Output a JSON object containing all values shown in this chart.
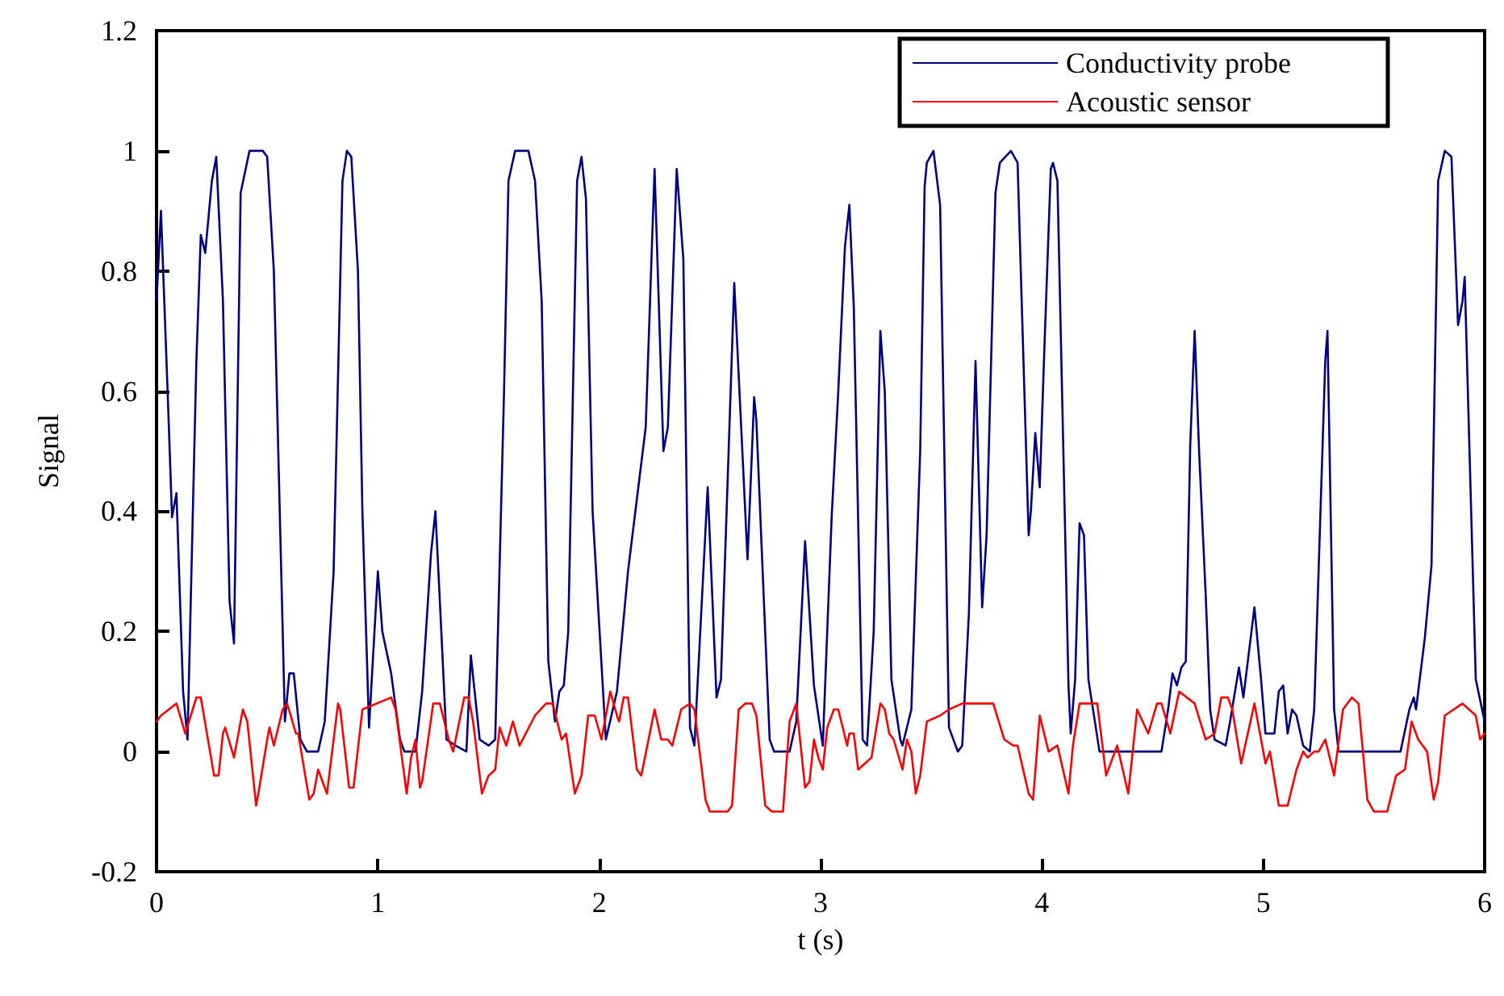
{
  "chart_data": {
    "type": "line",
    "xlabel": "t (s)",
    "ylabel": "Signal",
    "xlim": [
      0,
      6
    ],
    "xticks": [
      0,
      1,
      2,
      3,
      4,
      5,
      6
    ],
    "ylim": [
      -0.2,
      1.2
    ],
    "yticks": [
      -0.2,
      0,
      0.2,
      0.4,
      0.6,
      0.8,
      1,
      1.2
    ],
    "grid": false,
    "legend": "top right",
    "marker": "none",
    "line_style": "solid",
    "series": [
      {
        "name": "Conductivity probe",
        "color": "#000080",
        "x": [
          0,
          0.02,
          0.05,
          0.07,
          0.09,
          0.12,
          0.14,
          0.18,
          0.2,
          0.22,
          0.25,
          0.27,
          0.3,
          0.33,
          0.35,
          0.38,
          0.42,
          0.48,
          0.5,
          0.53,
          0.58,
          0.6,
          0.62,
          0.65,
          0.68,
          0.73,
          0.76,
          0.8,
          0.84,
          0.86,
          0.88,
          0.91,
          0.93,
          0.96,
          1,
          1.02,
          1.06,
          1.1,
          1.12,
          1.17,
          1.2,
          1.24,
          1.26,
          1.28,
          1.31,
          1.35,
          1.4,
          1.42,
          1.46,
          1.5,
          1.53,
          1.57,
          1.59,
          1.62,
          1.68,
          1.71,
          1.74,
          1.77,
          1.8,
          1.82,
          1.84,
          1.86,
          1.9,
          1.92,
          1.94,
          1.97,
          2.03,
          2.08,
          2.13,
          2.21,
          2.25,
          2.29,
          2.31,
          2.35,
          2.38,
          2.41,
          2.43,
          2.49,
          2.53,
          2.55,
          2.61,
          2.67,
          2.7,
          2.71,
          2.77,
          2.79,
          2.86,
          2.89,
          2.93,
          2.97,
          3.01,
          3.05,
          3.08,
          3.11,
          3.13,
          3.15,
          3.19,
          3.21,
          3.24,
          3.27,
          3.29,
          3.32,
          3.36,
          3.37,
          3.41,
          3.45,
          3.47,
          3.48,
          3.51,
          3.54,
          3.58,
          3.62,
          3.64,
          3.67,
          3.7,
          3.73,
          3.75,
          3.79,
          3.81,
          3.86,
          3.89,
          3.94,
          3.95,
          3.97,
          3.99,
          4.01,
          4.04,
          4.05,
          4.07,
          4.12,
          4.13,
          4.15,
          4.17,
          4.19,
          4.21,
          4.26,
          4.54,
          4.57,
          4.59,
          4.61,
          4.63,
          4.65,
          4.67,
          4.69,
          4.71,
          4.74,
          4.76,
          4.78,
          4.83,
          4.85,
          4.89,
          4.91,
          4.96,
          4.99,
          5.01,
          5.05,
          5.07,
          5.09,
          5.11,
          5.13,
          5.15,
          5.18,
          5.21,
          5.23,
          5.28,
          5.29,
          5.32,
          5.34,
          5.62,
          5.66,
          5.68,
          5.69,
          5.73,
          5.76,
          5.79,
          5.82,
          5.85,
          5.88,
          5.9,
          5.91,
          5.96,
          6
        ],
        "values": [
          0.75,
          0.9,
          0.6,
          0.39,
          0.43,
          0.1,
          0.02,
          0.65,
          0.86,
          0.83,
          0.95,
          0.99,
          0.75,
          0.25,
          0.18,
          0.93,
          1,
          1,
          0.99,
          0.8,
          0.05,
          0.13,
          0.13,
          0.02,
          0,
          0,
          0.05,
          0.3,
          0.95,
          1,
          0.99,
          0.8,
          0.4,
          0.04,
          0.3,
          0.2,
          0.13,
          0.02,
          0,
          0,
          0.1,
          0.33,
          0.4,
          0.25,
          0.02,
          0.01,
          0,
          0.16,
          0.02,
          0.01,
          0.02,
          0.6,
          0.95,
          1,
          1,
          0.95,
          0.75,
          0.15,
          0.05,
          0.1,
          0.11,
          0.2,
          0.95,
          0.99,
          0.92,
          0.4,
          0.02,
          0.1,
          0.3,
          0.54,
          0.97,
          0.5,
          0.54,
          0.97,
          0.82,
          0.04,
          0.01,
          0.44,
          0.09,
          0.12,
          0.78,
          0.32,
          0.59,
          0.55,
          0.02,
          0,
          0,
          0.05,
          0.35,
          0.11,
          0.01,
          0.39,
          0.6,
          0.84,
          0.91,
          0.74,
          0.02,
          0.01,
          0.2,
          0.7,
          0.6,
          0.12,
          0.02,
          0.01,
          0.07,
          0.5,
          0.94,
          0.98,
          1,
          0.91,
          0.04,
          0,
          0.01,
          0.23,
          0.65,
          0.24,
          0.36,
          0.93,
          0.98,
          1,
          0.98,
          0.36,
          0.4,
          0.53,
          0.44,
          0.66,
          0.97,
          0.98,
          0.95,
          0.11,
          0.03,
          0.12,
          0.38,
          0.36,
          0.12,
          0,
          0,
          0.07,
          0.13,
          0.11,
          0.14,
          0.15,
          0.51,
          0.7,
          0.5,
          0.26,
          0.07,
          0.02,
          0.01,
          0.05,
          0.14,
          0.09,
          0.24,
          0.12,
          0.03,
          0.03,
          0.1,
          0.11,
          0.03,
          0.07,
          0.06,
          0.01,
          0,
          0.07,
          0.65,
          0.7,
          0.07,
          0,
          0,
          0.07,
          0.09,
          0.07,
          0.19,
          0.31,
          0.95,
          1,
          0.99,
          0.71,
          0.75,
          0.79,
          0.12,
          0.05
        ]
      },
      {
        "name": "Acoustic sensor",
        "color": "#ff0000",
        "x": [
          0,
          0.02,
          0.09,
          0.13,
          0.18,
          0.2,
          0.26,
          0.28,
          0.3,
          0.31,
          0.35,
          0.39,
          0.41,
          0.45,
          0.46,
          0.5,
          0.51,
          0.53,
          0.57,
          0.59,
          0.63,
          0.64,
          0.69,
          0.71,
          0.73,
          0.77,
          0.82,
          0.83,
          0.87,
          0.89,
          0.93,
          1.06,
          1.08,
          1.13,
          1.15,
          1.17,
          1.19,
          1.2,
          1.25,
          1.28,
          1.32,
          1.34,
          1.39,
          1.41,
          1.43,
          1.47,
          1.5,
          1.53,
          1.55,
          1.58,
          1.61,
          1.64,
          1.71,
          1.76,
          1.79,
          1.83,
          1.85,
          1.89,
          1.92,
          1.95,
          1.98,
          2.01,
          2.05,
          2.08,
          2.09,
          2.11,
          2.13,
          2.17,
          2.19,
          2.25,
          2.28,
          2.31,
          2.33,
          2.37,
          2.41,
          2.43,
          2.48,
          2.5,
          2.58,
          2.6,
          2.63,
          2.66,
          2.69,
          2.71,
          2.75,
          2.78,
          2.83,
          2.86,
          2.89,
          2.93,
          2.95,
          2.97,
          2.99,
          3.01,
          3.03,
          3.06,
          3.08,
          3.12,
          3.13,
          3.15,
          3.17,
          3.2,
          3.23,
          3.27,
          3.29,
          3.31,
          3.33,
          3.37,
          3.39,
          3.41,
          3.43,
          3.45,
          3.48,
          3.54,
          3.58,
          3.64,
          3.69,
          3.73,
          3.78,
          3.83,
          3.87,
          3.89,
          3.94,
          3.96,
          3.99,
          4.03,
          4.07,
          4.12,
          4.14,
          4.17,
          4.22,
          4.25,
          4.29,
          4.34,
          4.39,
          4.43,
          4.48,
          4.52,
          4.54,
          4.58,
          4.62,
          4.69,
          4.74,
          4.78,
          4.81,
          4.84,
          4.86,
          4.9,
          4.96,
          5.01,
          5.03,
          5.07,
          5.11,
          5.15,
          5.18,
          5.2,
          5.23,
          5.25,
          5.28,
          5.32,
          5.36,
          5.4,
          5.43,
          5.47,
          5.5,
          5.56,
          5.6,
          5.64,
          5.67,
          5.7,
          5.74,
          5.77,
          5.79,
          5.82,
          5.9,
          5.96,
          5.98,
          6
        ],
        "values": [
          0.05,
          0.06,
          0.08,
          0.03,
          0.09,
          0.09,
          -0.04,
          -0.04,
          0.03,
          0.04,
          -0.01,
          0.07,
          0.05,
          -0.09,
          -0.07,
          0.02,
          0.04,
          0.01,
          0.07,
          0.08,
          0.03,
          0.03,
          -0.08,
          -0.07,
          -0.03,
          -0.07,
          0.08,
          0.07,
          -0.06,
          -0.06,
          0.07,
          0.09,
          0.07,
          -0.07,
          -0.01,
          0.02,
          -0.06,
          -0.05,
          0.08,
          0.08,
          0.02,
          0,
          0.09,
          0.09,
          0.05,
          -0.07,
          -0.04,
          -0.03,
          0.04,
          0.01,
          0.05,
          0.01,
          0.06,
          0.08,
          0.08,
          0.02,
          0.03,
          -0.07,
          -0.04,
          0.06,
          0.06,
          0.02,
          0.1,
          0.06,
          0.05,
          0.09,
          0.09,
          -0.03,
          -0.04,
          0.07,
          0.02,
          0.02,
          0.01,
          0.07,
          0.08,
          0.07,
          -0.08,
          -0.1,
          -0.1,
          -0.09,
          0.07,
          0.08,
          0.08,
          0.06,
          -0.09,
          -0.1,
          -0.1,
          0.05,
          0.08,
          -0.06,
          -0.05,
          0.02,
          -0.01,
          -0.03,
          0.04,
          0.07,
          0.07,
          0.01,
          0.03,
          0.03,
          -0.03,
          -0.02,
          -0.01,
          0.08,
          0.07,
          0.03,
          0.02,
          -0.03,
          0.02,
          0,
          -0.07,
          -0.04,
          0.05,
          0.06,
          0.07,
          0.08,
          0.08,
          0.08,
          0.08,
          0.02,
          0.01,
          0.01,
          -0.07,
          -0.08,
          0.06,
          0,
          0.01,
          -0.07,
          0.01,
          0.08,
          0.08,
          0.08,
          -0.04,
          0.01,
          -0.07,
          0.07,
          0.03,
          0.08,
          0.08,
          0.03,
          0.1,
          0.08,
          0.02,
          0.03,
          0.09,
          0.09,
          0.07,
          -0.02,
          0.08,
          -0.02,
          0,
          -0.09,
          -0.09,
          -0.03,
          0,
          -0.01,
          0,
          0,
          0.02,
          -0.04,
          0.07,
          0.09,
          0.08,
          -0.08,
          -0.1,
          -0.1,
          -0.04,
          -0.03,
          0.05,
          0.02,
          0,
          -0.08,
          -0.05,
          0.06,
          0.08,
          0.06,
          0.02,
          0.03
        ]
      }
    ]
  }
}
